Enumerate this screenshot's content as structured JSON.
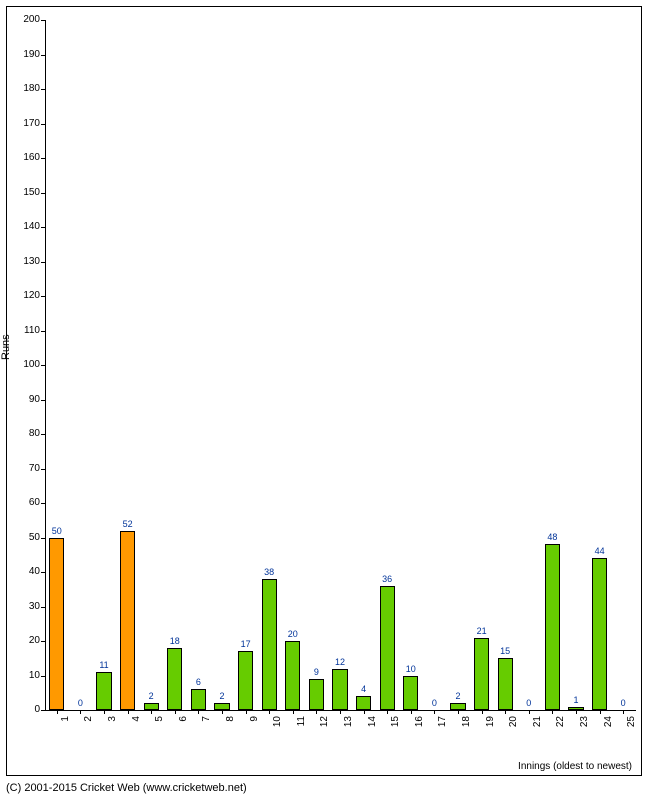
{
  "chart": {
    "type": "bar",
    "ylabel": "Runs",
    "xlabel": "Innings (oldest to newest)",
    "ylim": [
      0,
      200
    ],
    "ytick_step": 10,
    "background_color": "#ffffff",
    "border_color": "#000000",
    "label_color": "#003399",
    "tick_fontsize": 10,
    "label_fontsize": 9,
    "colors": {
      "green": "#66cc00",
      "orange": "#ff9900"
    },
    "innings": [
      {
        "x": 1,
        "value": 50,
        "color": "orange"
      },
      {
        "x": 2,
        "value": 0,
        "color": "green"
      },
      {
        "x": 3,
        "value": 11,
        "color": "green"
      },
      {
        "x": 4,
        "value": 52,
        "color": "orange"
      },
      {
        "x": 5,
        "value": 2,
        "color": "green"
      },
      {
        "x": 6,
        "value": 18,
        "color": "green"
      },
      {
        "x": 7,
        "value": 6,
        "color": "green"
      },
      {
        "x": 8,
        "value": 2,
        "color": "green"
      },
      {
        "x": 9,
        "value": 17,
        "color": "green"
      },
      {
        "x": 10,
        "value": 38,
        "color": "green"
      },
      {
        "x": 11,
        "value": 20,
        "color": "green"
      },
      {
        "x": 12,
        "value": 9,
        "color": "green"
      },
      {
        "x": 13,
        "value": 12,
        "color": "green"
      },
      {
        "x": 14,
        "value": 4,
        "color": "green"
      },
      {
        "x": 15,
        "value": 36,
        "color": "green"
      },
      {
        "x": 16,
        "value": 10,
        "color": "green"
      },
      {
        "x": 17,
        "value": 0,
        "color": "green"
      },
      {
        "x": 18,
        "value": 2,
        "color": "green"
      },
      {
        "x": 19,
        "value": 21,
        "color": "green"
      },
      {
        "x": 20,
        "value": 15,
        "color": "green"
      },
      {
        "x": 21,
        "value": 0,
        "color": "green"
      },
      {
        "x": 22,
        "value": 48,
        "color": "green"
      },
      {
        "x": 23,
        "value": 1,
        "color": "green"
      },
      {
        "x": 24,
        "value": 44,
        "color": "green"
      },
      {
        "x": 25,
        "value": 0,
        "color": "green"
      }
    ]
  },
  "copyright": "(C) 2001-2015 Cricket Web (www.cricketweb.net)"
}
